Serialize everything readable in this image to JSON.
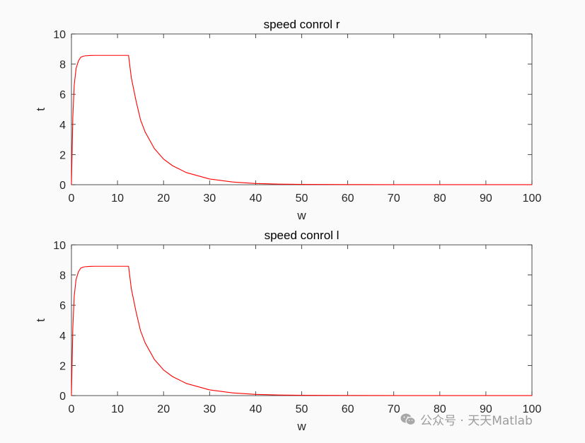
{
  "chart_data": [
    {
      "type": "line",
      "title": "speed conrol r",
      "xlabel": "w",
      "ylabel": "t",
      "xlim": [
        0,
        100
      ],
      "ylim": [
        0,
        10
      ],
      "xticks": [
        "0",
        "10",
        "20",
        "30",
        "40",
        "50",
        "60",
        "70",
        "80",
        "90",
        "100"
      ],
      "yticks": [
        "0",
        "2",
        "4",
        "6",
        "8",
        "10"
      ],
      "grid": false,
      "series": [
        {
          "color": "#ff0000",
          "x": [
            0,
            0.3,
            0.6,
            1,
            1.5,
            2,
            2.5,
            3,
            4,
            5,
            6,
            8,
            10,
            12.4,
            13,
            14,
            15,
            16,
            18,
            20,
            22,
            25,
            30,
            35,
            40,
            45,
            50,
            60,
            70,
            80,
            90,
            100
          ],
          "y": [
            0,
            4.5,
            6.6,
            7.7,
            8.2,
            8.45,
            8.52,
            8.55,
            8.57,
            8.58,
            8.58,
            8.58,
            8.58,
            8.58,
            7.1,
            5.6,
            4.3,
            3.5,
            2.4,
            1.7,
            1.25,
            0.8,
            0.38,
            0.18,
            0.08,
            0.04,
            0.02,
            0.01,
            0.005,
            0.003,
            0.002,
            0.001
          ]
        }
      ]
    },
    {
      "type": "line",
      "title": "speed conrol l",
      "xlabel": "w",
      "ylabel": "t",
      "xlim": [
        0,
        100
      ],
      "ylim": [
        0,
        10
      ],
      "xticks": [
        "0",
        "10",
        "20",
        "30",
        "40",
        "50",
        "60",
        "70",
        "80",
        "90",
        "100"
      ],
      "yticks": [
        "0",
        "2",
        "4",
        "6",
        "8",
        "10"
      ],
      "grid": false,
      "series": [
        {
          "color": "#ff0000",
          "x": [
            0,
            0.3,
            0.6,
            1,
            1.5,
            2,
            2.5,
            3,
            4,
            5,
            6,
            8,
            10,
            12.4,
            13,
            14,
            15,
            16,
            18,
            20,
            22,
            25,
            30,
            35,
            40,
            45,
            50,
            60,
            70,
            80,
            90,
            100
          ],
          "y": [
            0,
            4.5,
            6.6,
            7.7,
            8.2,
            8.45,
            8.52,
            8.55,
            8.57,
            8.58,
            8.58,
            8.58,
            8.58,
            8.58,
            7.1,
            5.6,
            4.3,
            3.5,
            2.4,
            1.7,
            1.25,
            0.8,
            0.38,
            0.18,
            0.08,
            0.04,
            0.02,
            0.01,
            0.005,
            0.003,
            0.002,
            0.001
          ]
        }
      ]
    }
  ],
  "watermark": {
    "text": "公众号 · 天天Matlab",
    "icon": "wechat-icon"
  }
}
